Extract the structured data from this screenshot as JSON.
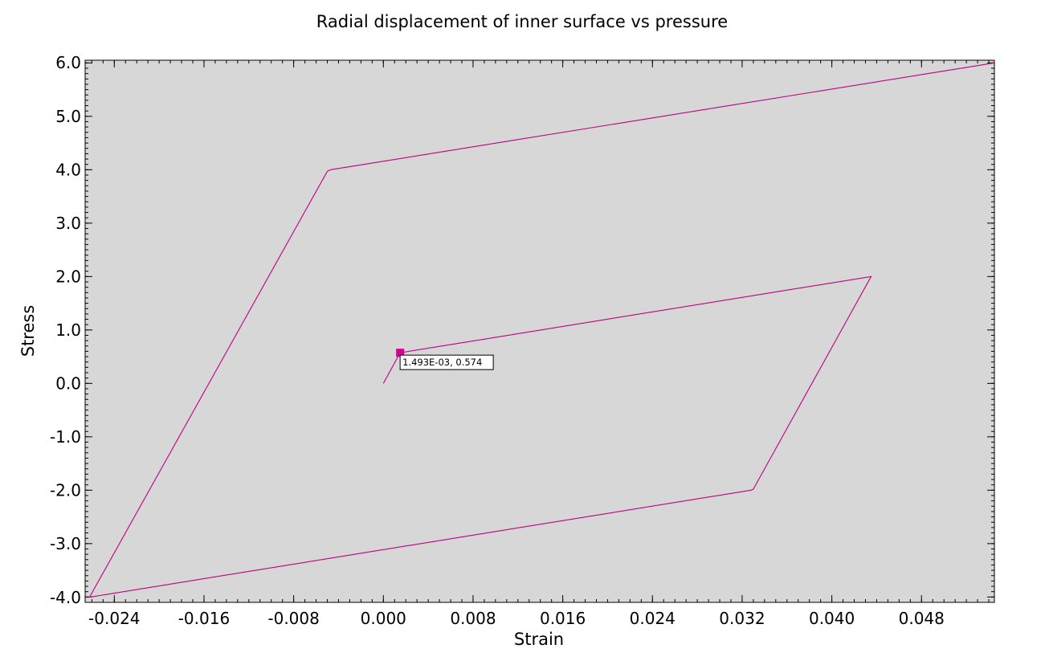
{
  "chart_data": {
    "type": "line",
    "title": "Radial displacement of inner surface vs pressure",
    "xlabel": "Strain",
    "ylabel": "Stress",
    "xlim": [
      -0.0266,
      0.0545
    ],
    "ylim": [
      -4.1,
      6.05
    ],
    "x_ticks": [
      -0.024,
      -0.016,
      -0.008,
      0.0,
      0.008,
      0.016,
      0.024,
      0.032,
      0.04,
      0.048
    ],
    "x_tick_labels": [
      "-0.024",
      "-0.016",
      "-0.008",
      "0.000",
      "0.008",
      "0.016",
      "0.024",
      "0.032",
      "0.040",
      "0.048"
    ],
    "y_ticks": [
      -4,
      -3,
      -2,
      -1,
      0,
      1,
      2,
      3,
      4,
      5,
      6
    ],
    "y_tick_labels": [
      "-4.0",
      "-3.0",
      "-2.0",
      "-1.0",
      "0.0",
      "1.0",
      "2.0",
      "3.0",
      "4.0",
      "5.0",
      "6.0"
    ],
    "grid": false,
    "background_color": "#d7d7d7",
    "series": [
      {
        "color": "#c0007f",
        "x": [
          0.0,
          0.00149,
          0.0435,
          0.033,
          0.0328,
          -0.0261,
          -0.0262,
          -0.005,
          -0.0047,
          0.0545
        ],
        "y": [
          0.0,
          0.574,
          2.0,
          -1.98,
          -2.0,
          -4.0,
          -4.0,
          3.97,
          4.0,
          6.0
        ]
      }
    ],
    "annotations": [
      {
        "x": 0.001493,
        "y": 0.574,
        "text": "1.493E-03, 0.574",
        "marker_color": "#d6008f"
      }
    ]
  }
}
